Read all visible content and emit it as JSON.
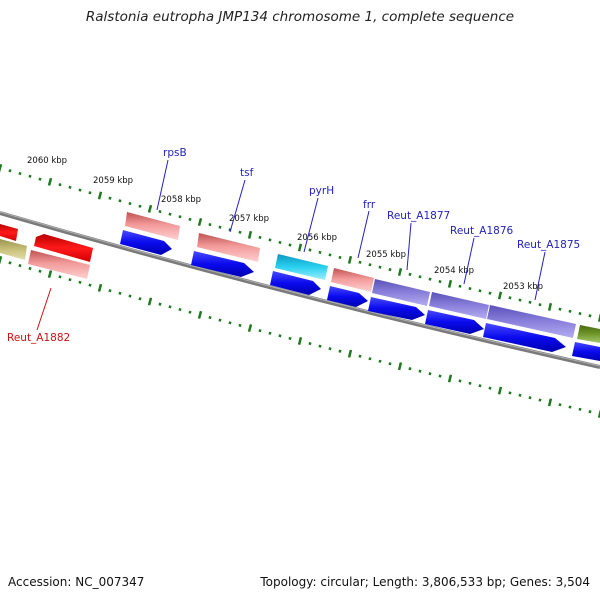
{
  "title": "Ralstonia eutropha JMP134 chromosome 1, complete sequence",
  "footer": {
    "accession": "Accession: NC_007347",
    "topology": "Topology: circular; Length: 3,806,533 bp; Genes: 3,504"
  },
  "ruler": {
    "color": "#1e7a1e",
    "ticks": [
      "2060 kbp",
      "2059 kbp",
      "2058 kbp",
      "2057 kbp",
      "2056 kbp",
      "2055 kbp",
      "2054 kbp",
      "2053 kbp"
    ]
  },
  "backbone_color": "#7a7a7a",
  "genes": [
    {
      "label": "rpsB",
      "color": "#2222bb"
    },
    {
      "label": "tsf",
      "color": "#2222bb"
    },
    {
      "label": "pyrH",
      "color": "#2222bb"
    },
    {
      "label": "frr",
      "color": "#2222bb"
    },
    {
      "label": "Reut_A1877",
      "color": "#2222bb"
    },
    {
      "label": "Reut_A1876",
      "color": "#2222bb"
    },
    {
      "label": "Reut_A1875",
      "color": "#2222bb"
    },
    {
      "label": "Reut_A1882",
      "color": "#cc1111"
    }
  ],
  "colors": {
    "blue_cds": "#1010ee",
    "pink_rna": "#e98686",
    "red_cds": "#ee1111",
    "cyan_cds": "#22c8e8",
    "purple_cds": "#8a80d8",
    "olive_cds": "#6b8e23",
    "khaki_cds": "#c8c07a"
  }
}
